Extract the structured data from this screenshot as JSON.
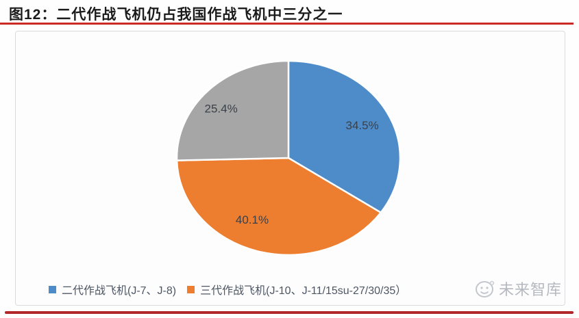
{
  "figure": {
    "title": "图12：二代作战飞机仍占我国作战飞机中三分之一"
  },
  "chart_data": {
    "type": "pie",
    "title": "二代作战飞机仍占我国作战飞机中三分之一",
    "unit": "%",
    "direction": "clockwise",
    "start_angle_deg": 0,
    "legend_position": "bottom",
    "slices": [
      {
        "name": "二代作战飞机(J-7、J-8)",
        "value": 34.5,
        "label": "34.5%",
        "color": "#4E8CC9"
      },
      {
        "name": "三代作战飞机(J-10、J-11/15su-27/30/35）",
        "value": 40.1,
        "label": "40.1%",
        "color": "#ED7D2F"
      },
      {
        "name": "",
        "value": 25.4,
        "label": "25.4%",
        "color": "#A6A6A6"
      }
    ],
    "label_color": "#3A4049"
  },
  "legend": {
    "items": [
      {
        "label": "二代作战飞机(J-7、J-8)",
        "color": "#4E8CC9"
      },
      {
        "label": "三代作战飞机(J-10、J-11/15su-27/30/35）",
        "color": "#ED7D2F"
      }
    ]
  },
  "watermark": {
    "text": "未来智库",
    "icon": "planet-face-logo"
  },
  "colors": {
    "title_text": "#1b1b1b",
    "title_rule": "#CB2A24",
    "bottom_rule": "#B3262A",
    "panel_border": "#d9dbde",
    "legend_text": "#4d5663"
  }
}
